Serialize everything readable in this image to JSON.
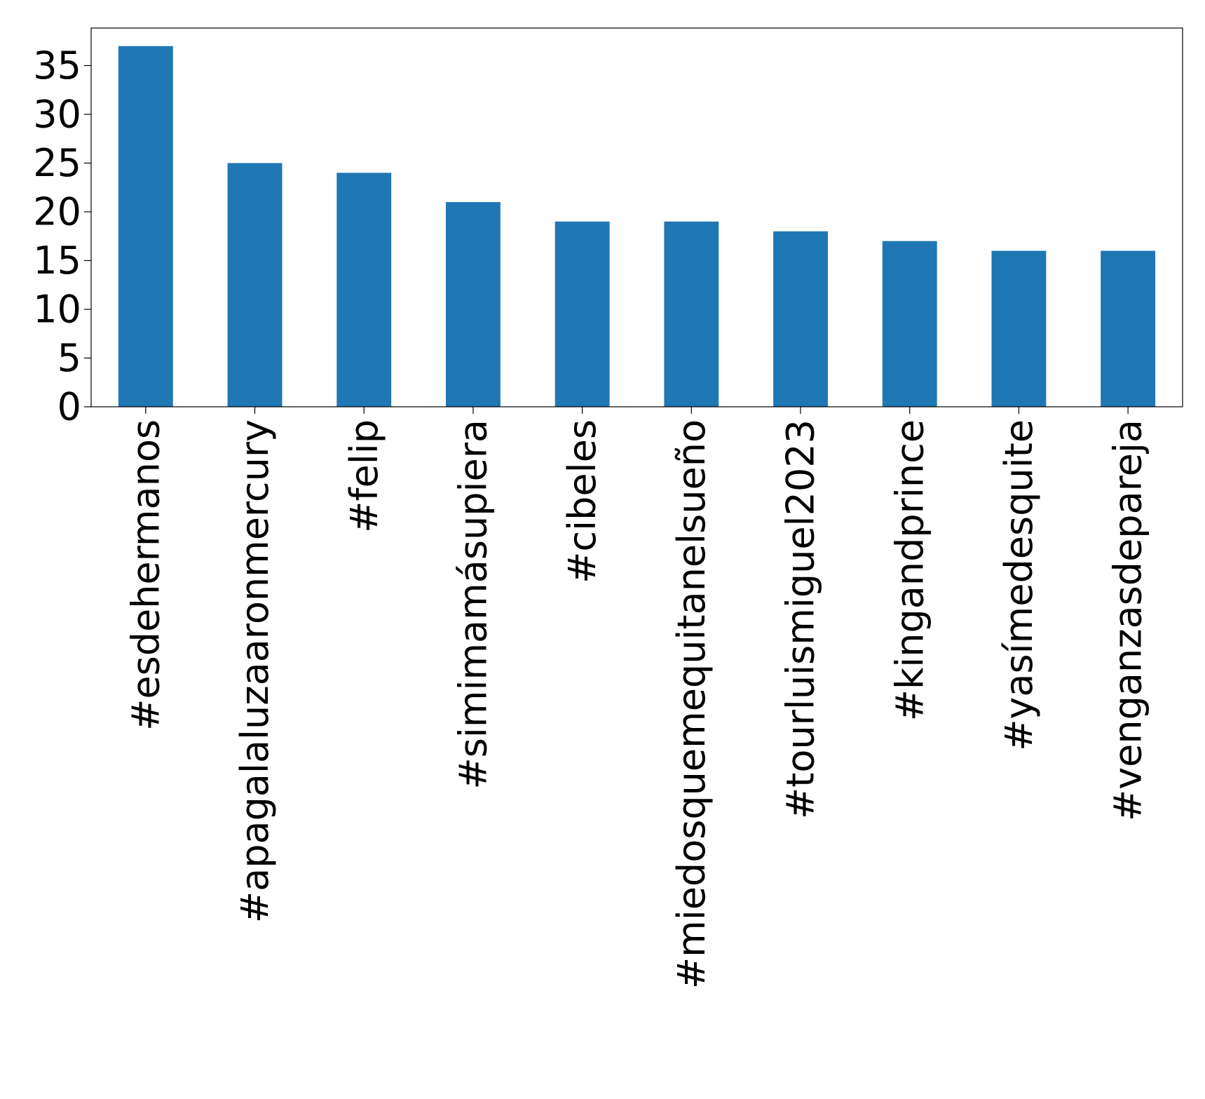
{
  "chart_data": {
    "type": "bar",
    "title": "",
    "xlabel": "",
    "ylabel": "",
    "categories": [
      "#esdehermanos",
      "#apagalaluzaaronmercury",
      "#felip",
      "#simimamásupiera",
      "#cibeles",
      "#miedosquemequitanelsueño",
      "#tourluismiguel2023",
      "#kingandprince",
      "#yasímedesquite",
      "#venganzasdepareja"
    ],
    "values": [
      37,
      25,
      24,
      21,
      19,
      19,
      18,
      17,
      16,
      16
    ],
    "ylim": [
      0,
      38.85
    ],
    "yticks": [
      0,
      5,
      10,
      15,
      20,
      25,
      30,
      35
    ],
    "bar_color": "#1f77b4",
    "grid": false,
    "legend": "none"
  }
}
